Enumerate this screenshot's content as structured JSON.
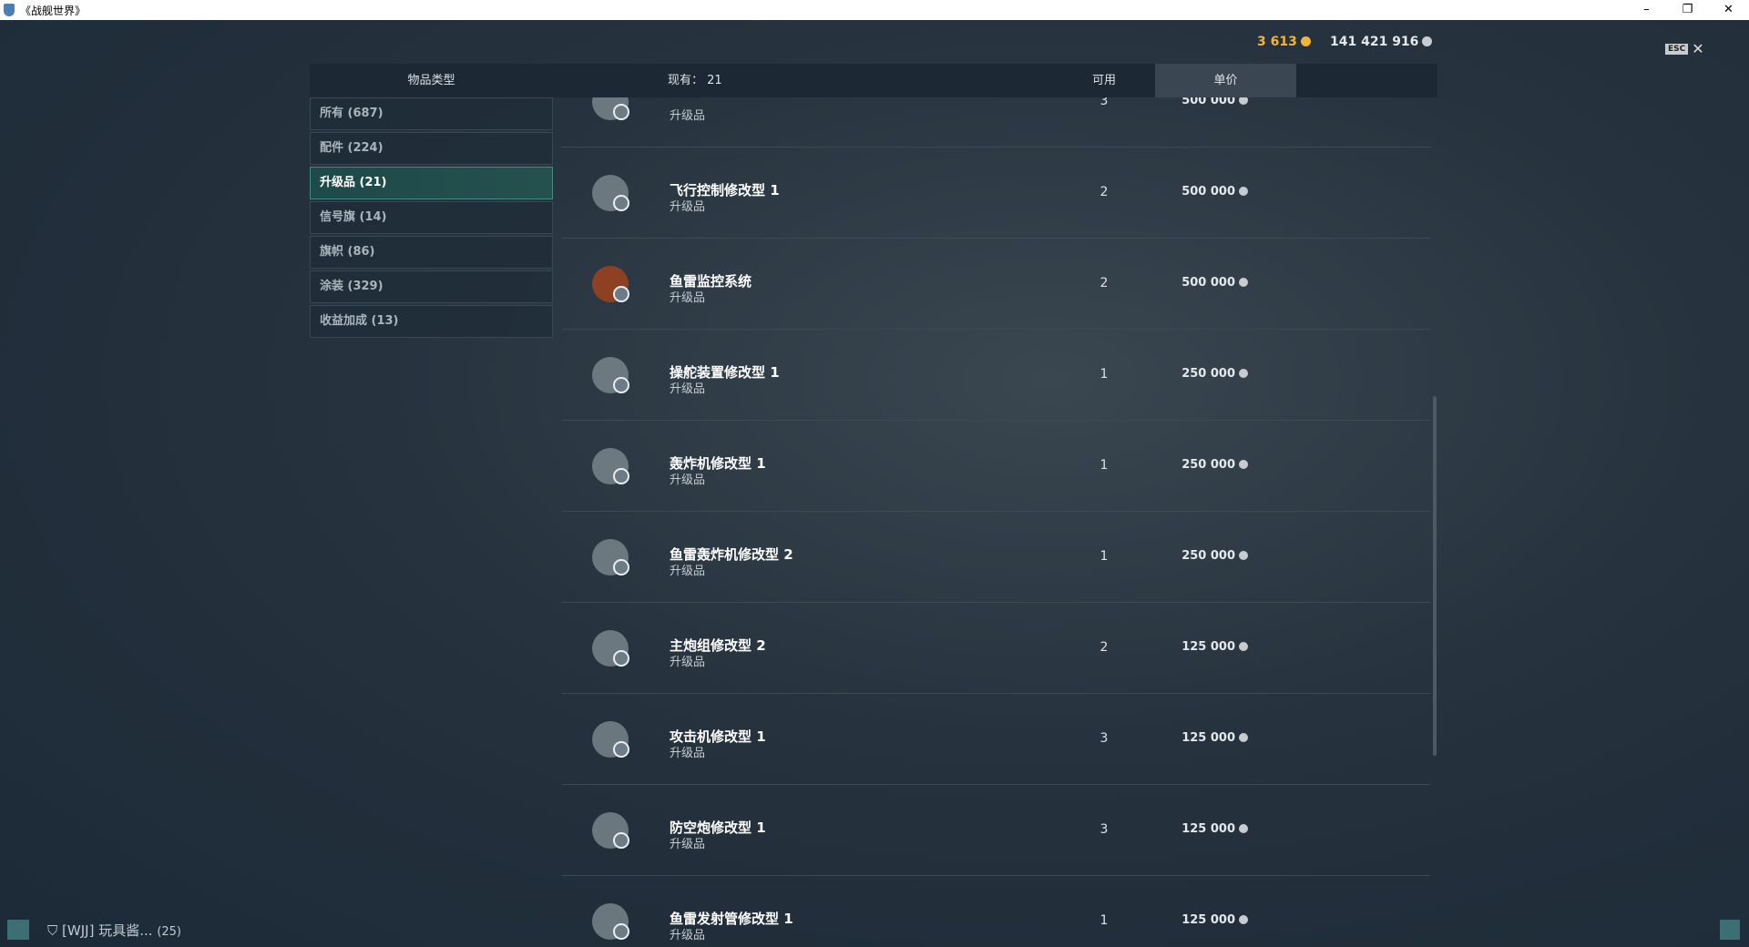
{
  "window": {
    "title": "《战舰世界》",
    "minimize": "–",
    "restore": "❐",
    "close": "✕"
  },
  "currency": {
    "gold": "3 613",
    "credits": "141 421 916",
    "gold_color": "#f0b43c"
  },
  "esc": {
    "key": "ESC",
    "close": "✕"
  },
  "header": {
    "type": "物品类型",
    "owned": "现有： 21",
    "available": "可用",
    "price": "单价"
  },
  "categories": [
    {
      "label": "所有 (687)"
    },
    {
      "label": "配件 (224)"
    },
    {
      "label": "升级品 (21)",
      "active": true
    },
    {
      "label": "信号旗 (14)"
    },
    {
      "label": "旗帜 (86)"
    },
    {
      "label": "涂装 (329)"
    },
    {
      "label": "收益加成 (13)"
    }
  ],
  "items": [
    {
      "name": "",
      "type": "升级品",
      "count": "3",
      "price": "500 000",
      "icon": "warning-module-icon"
    },
    {
      "name": "飞行控制修改型 1",
      "type": "升级品",
      "count": "2",
      "price": "500 000",
      "icon": "plane-refresh-icon"
    },
    {
      "name": "鱼雷监控系统",
      "type": "升级品",
      "count": "2",
      "price": "500 000",
      "icon": "radar-icon"
    },
    {
      "name": "操舵装置修改型 1",
      "type": "升级品",
      "count": "1",
      "price": "250 000",
      "icon": "rudder-icon"
    },
    {
      "name": "轰炸机修改型 1",
      "type": "升级品",
      "count": "1",
      "price": "250 000",
      "icon": "bomber-plus-icon"
    },
    {
      "name": "鱼雷轰炸机修改型 2",
      "type": "升级品",
      "count": "1",
      "price": "250 000",
      "icon": "torpedo-bomber-plus-icon"
    },
    {
      "name": "主炮组修改型 2",
      "type": "升级品",
      "count": "2",
      "price": "125 000",
      "icon": "main-battery-icon"
    },
    {
      "name": "攻击机修改型 1",
      "type": "升级品",
      "count": "3",
      "price": "125 000",
      "icon": "attack-aircraft-icon"
    },
    {
      "name": "防空炮修改型 1",
      "type": "升级品",
      "count": "3",
      "price": "125 000",
      "icon": "aa-gun-icon"
    },
    {
      "name": "鱼雷发射管修改型 1",
      "type": "升级品",
      "count": "1",
      "price": "125 000",
      "icon": "torpedo-tubes-icon"
    }
  ],
  "footer": {
    "clan": "[WJJ]",
    "player": "玩具酱...",
    "count": "(25)"
  }
}
